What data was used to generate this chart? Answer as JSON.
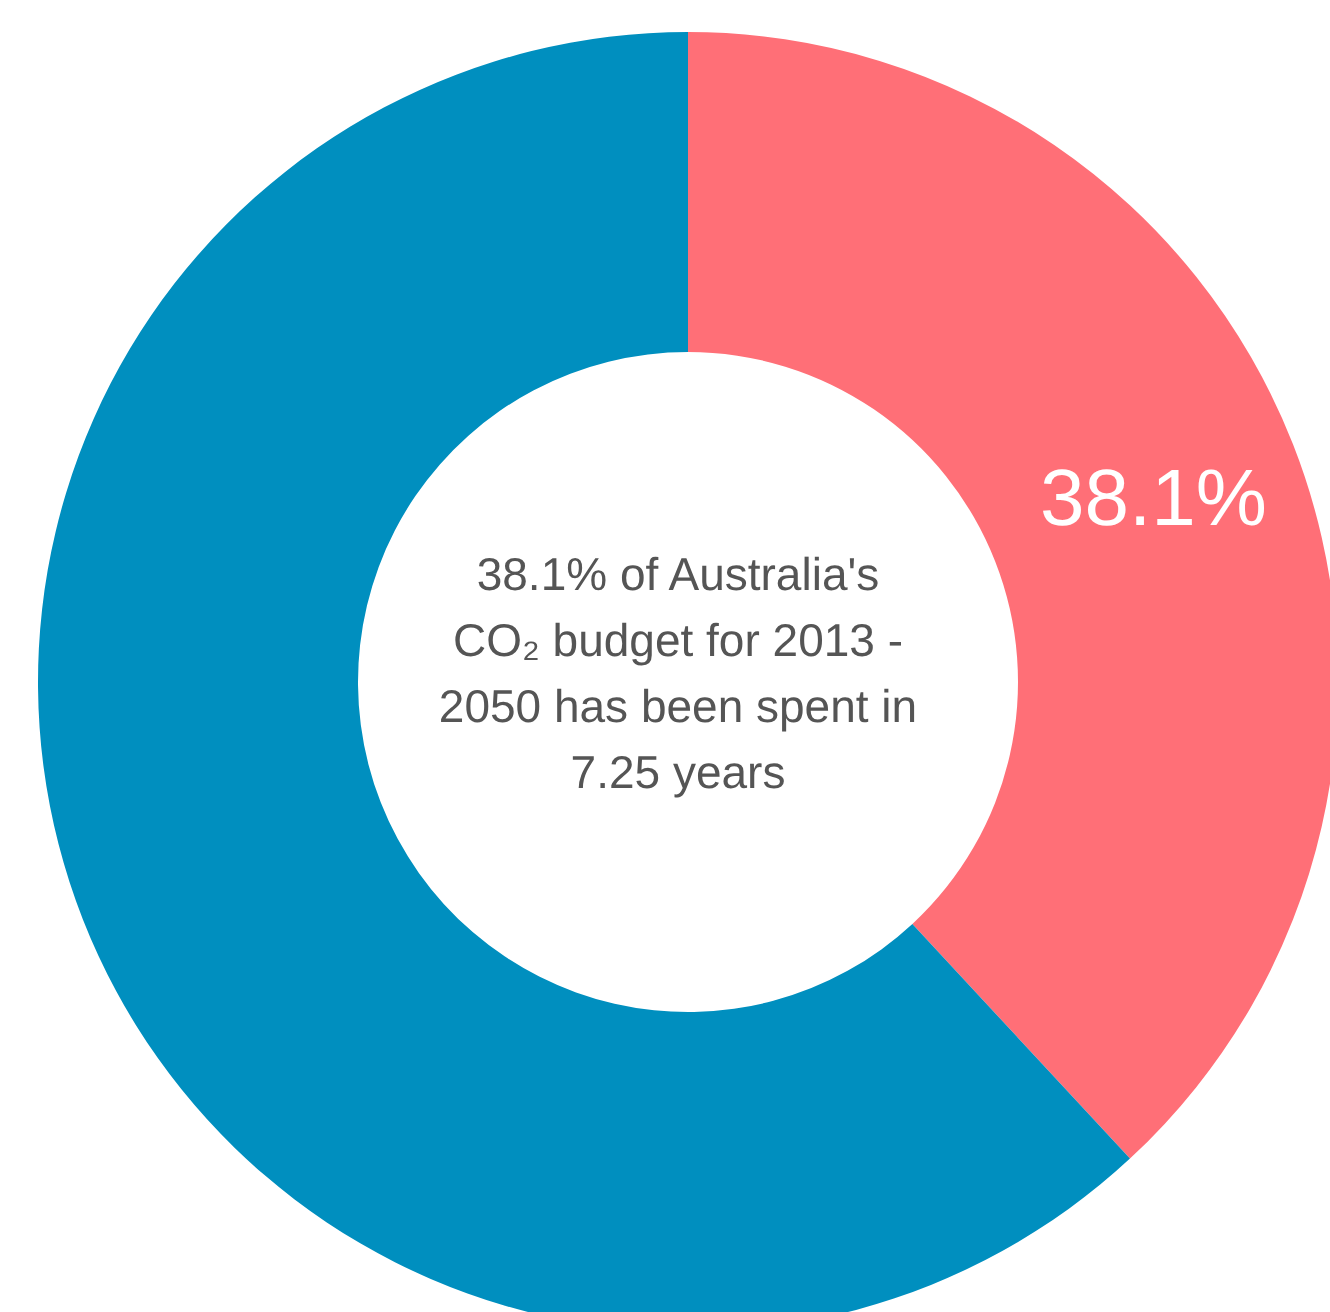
{
  "chart_data": {
    "type": "donut",
    "categories": [
      null,
      null
    ],
    "values": [
      38.1,
      61.9
    ],
    "colors": [
      "#ff6f77",
      "#008fbf"
    ],
    "value_labels": [
      "38.1%",
      null
    ],
    "annotations": [
      "38.1% of Australia's CO₂ budget for 2013 - 2050 has been spent in 7.25 years"
    ]
  }
}
